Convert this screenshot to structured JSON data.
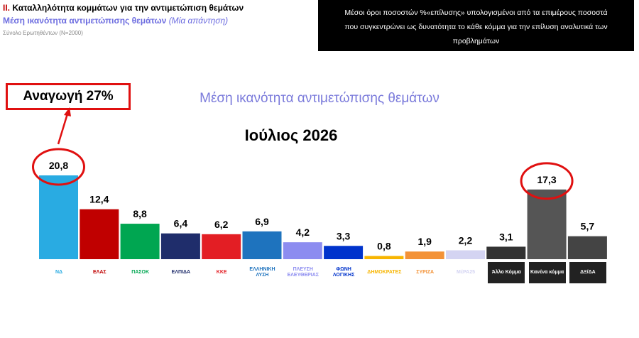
{
  "header": {
    "section_number": "ΙΙ.",
    "title": "Καταλληλότητα κομμάτων για την αντιμετώπιση θεμάτων",
    "subtitle": "Μέση ικανότητα αντιμετώπισης θεμάτων",
    "subtitle_note": "(Μία απάντηση)",
    "sample": "Σύνολο Ερωτηθέντων (N=2000)"
  },
  "note_box": {
    "lines": [
      "Μέσοι όροι ποσοστών %«επίλυσης» υπολογισμένοι από τα επιμέρους ποσοστά",
      "που συγκεντρώνει ως δυνατότητα  το κάθε κόμμα για την επίλυση αναλυτικά των",
      "προβλημάτων"
    ]
  },
  "callout": "Αναγωγή 27%",
  "chart_data": {
    "type": "bar",
    "title": "Μέση ικανότητα αντιμετώπισης θεμάτων",
    "subtitle": "Ιούλιος 2026",
    "categories": [
      "ΝΔ",
      "ΕΛΑΣ",
      "ΠΑΣΟΚ",
      "ΕΛΠΙΔΑ",
      "ΚΚΕ",
      "ΕΛΛΗΝΙΚΗ ΛΥΣΗ",
      "ΠΛΕΥΣΗ ΕΛΕΥΘΕΡΙΑΣ",
      "ΦΩΝΗ ΛΟΓΙΚΗΣ",
      "ΔΗΜΟΚΡΑΤΕΣ",
      "ΣΥΡΙΖΑ",
      "ΜέΡΑ25",
      "Άλλο Κόμμα",
      "Κανένα κόμμα",
      "ΔΞ/ΔΑ"
    ],
    "values": [
      20.8,
      12.4,
      8.8,
      6.4,
      6.2,
      6.9,
      4.2,
      3.3,
      0.8,
      1.9,
      2.2,
      3.1,
      17.3,
      5.7
    ],
    "value_labels": [
      "20,8",
      "12,4",
      "8,8",
      "6,4",
      "6,2",
      "6,9",
      "4,2",
      "3,3",
      "0,8",
      "1,9",
      "2,2",
      "3,1",
      "17,3",
      "5,7"
    ],
    "colors": [
      "#29abe2",
      "#c00000",
      "#00a651",
      "#1f2d6b",
      "#e31e24",
      "#1e73be",
      "#8c8cf0",
      "#0033cc",
      "#f7b500",
      "#f39237",
      "#d4d4f2",
      "#333333",
      "#555555",
      "#444444"
    ],
    "highlight": [
      0,
      12
    ]
  }
}
